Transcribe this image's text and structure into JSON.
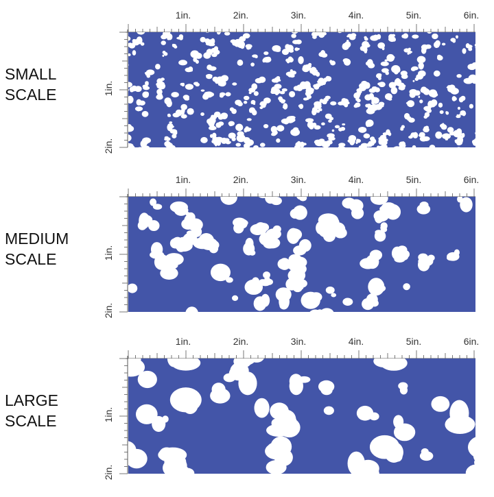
{
  "panels": [
    {
      "label": [
        "SMALL",
        "SCALE"
      ],
      "ruler_top": [
        "1in.",
        "2in.",
        "3in.",
        "4in.",
        "5in.",
        "6in."
      ],
      "ruler_side": [
        "1in.",
        "2in."
      ]
    },
    {
      "label": [
        "MEDIUM",
        "SCALE"
      ],
      "ruler_top": [
        "1in.",
        "2in.",
        "3in.",
        "4in.",
        "5in.",
        "6in."
      ],
      "ruler_side": [
        "1in.",
        "2in."
      ]
    },
    {
      "label": [
        "LARGE",
        "SCALE"
      ],
      "ruler_top": [
        "1in.",
        "2in.",
        "3in.",
        "4in.",
        "5in.",
        "6in."
      ],
      "ruler_side": [
        "1in.",
        "2in."
      ]
    }
  ]
}
